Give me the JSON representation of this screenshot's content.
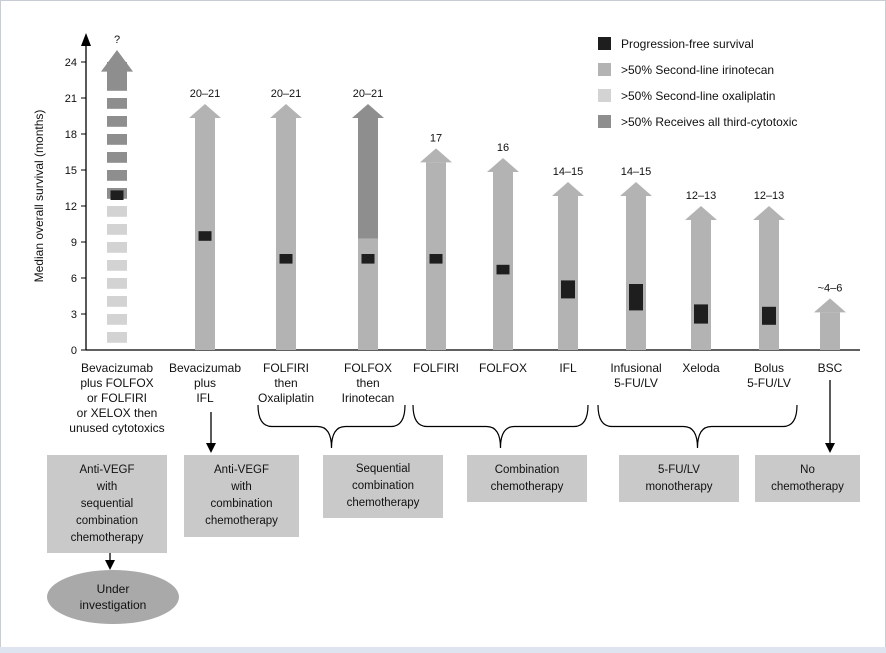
{
  "chart_data": {
    "type": "bar",
    "ylabel": "Median overall survival (months)",
    "yticks": [
      0,
      3,
      6,
      9,
      12,
      15,
      18,
      21,
      24
    ],
    "ylim": [
      0,
      25
    ],
    "legend_position": "top-right",
    "legend": [
      {
        "label": "Progression-free survival",
        "color": "#1e1e1e"
      },
      {
        "label": ">50% Second-line irinotecan",
        "color": "#b3b3b3"
      },
      {
        "label": ">50% Second-line oxaliplatin",
        "color": "#d3d3d3"
      },
      {
        "label": ">50% Receives all third-cytotoxic",
        "color": "#8e8e8e"
      }
    ],
    "regimens": [
      {
        "label": "Bevacizumab\nplus FOLFOX\nor FOLFIRI\nor XELOX then\nunused cytotoxics",
        "os_label": "?",
        "os_value": 25,
        "pfs_low": 12.5,
        "pfs_high": 13.3,
        "style": "dashed"
      },
      {
        "label": "Bevacizumab\nplus\nIFL",
        "os_label": "20–21",
        "os_value": 20.5,
        "pfs_low": 9.1,
        "pfs_high": 9.9,
        "style": "irinotecan"
      },
      {
        "label": "FOLFIRI\nthen\nOxaliplatin",
        "os_label": "20–21",
        "os_value": 20.5,
        "pfs_low": 7.2,
        "pfs_high": 8.0,
        "style": "irinotecan"
      },
      {
        "label": "FOLFOX\nthen\nIrinotecan",
        "os_label": "20–21",
        "os_value": 20.5,
        "pfs_low": 7.2,
        "pfs_high": 8.0,
        "style": "all-third",
        "lower_fill_top": 9.3
      },
      {
        "label": "FOLFIRI",
        "os_label": "17",
        "os_value": 16.8,
        "pfs_low": 7.2,
        "pfs_high": 8.0,
        "style": "irinotecan"
      },
      {
        "label": "FOLFOX",
        "os_label": "16",
        "os_value": 16.0,
        "pfs_low": 6.3,
        "pfs_high": 7.1,
        "style": "irinotecan"
      },
      {
        "label": "IFL",
        "os_label": "14–15",
        "os_value": 14.0,
        "pfs_low": 4.3,
        "pfs_high": 5.8,
        "style": "irinotecan"
      },
      {
        "label": "Infusional\n5-FU/LV",
        "os_label": "14–15",
        "os_value": 14.0,
        "pfs_low": 3.3,
        "pfs_high": 5.5,
        "style": "irinotecan"
      },
      {
        "label": "Xeloda",
        "os_label": "12–13",
        "os_value": 12.0,
        "pfs_low": 2.2,
        "pfs_high": 3.8,
        "style": "irinotecan"
      },
      {
        "label": "Bolus\n5-FU/LV",
        "os_label": "12–13",
        "os_value": 12.0,
        "pfs_low": 2.1,
        "pfs_high": 3.6,
        "style": "irinotecan"
      },
      {
        "label": "BSC",
        "os_label": "~4–6",
        "os_value": 4.3,
        "style": "irinotecan"
      }
    ]
  },
  "groups": [
    {
      "label": "Anti-VEGF\nwith\nsequential\ncombination\nchemotherapy"
    },
    {
      "label": "Anti-VEGF\nwith\ncombination\nchemotherapy"
    },
    {
      "label": "Sequential\ncombination\nchemotherapy"
    },
    {
      "label": "Combination\nchemotherapy"
    },
    {
      "label": "5-FU/LV\nmonotherapy"
    },
    {
      "label": "No\nchemotherapy"
    }
  ],
  "outcome": {
    "label": "Under\ninvestigation"
  }
}
